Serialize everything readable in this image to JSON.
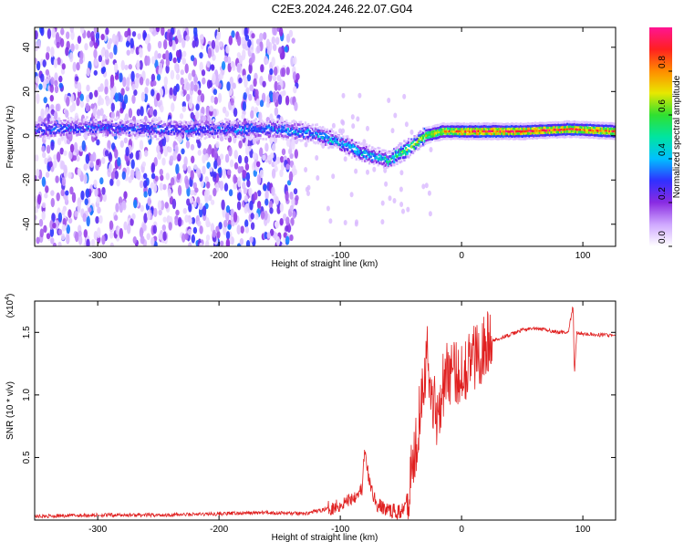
{
  "figure_title": "C2E3.2024.246.22.07.G04",
  "chart_data": [
    {
      "type": "heatmap",
      "title": "C2E3.2024.246.22.07.G04",
      "xlabel": "Height of straight line (km)",
      "ylabel": "Frequency (Hz)",
      "xlim": [
        -352,
        127
      ],
      "ylim": [
        -50,
        49
      ],
      "x_ticks": [
        -300,
        -200,
        -100,
        0,
        100
      ],
      "y_ticks": [
        -40,
        -20,
        0,
        20,
        40
      ],
      "colorbar": {
        "label": "Normalized spectral amplitude",
        "range": [
          0,
          1
        ],
        "ticks": [
          0.0,
          0.2,
          0.4,
          0.6,
          0.8
        ],
        "colors": [
          "#ffffff",
          "#cfa8ff",
          "#8a2be2",
          "#3030ff",
          "#00c0ff",
          "#00e5a0",
          "#30e030",
          "#e8e800",
          "#ff8c00",
          "#ff2020",
          "#ff1493"
        ]
      },
      "ridge": {
        "description_points": [
          [
            -352,
            3
          ],
          [
            -300,
            4
          ],
          [
            -250,
            3
          ],
          [
            -200,
            3
          ],
          [
            -150,
            3
          ],
          [
            -120,
            1
          ],
          [
            -100,
            -3
          ],
          [
            -80,
            -8
          ],
          [
            -60,
            -11
          ],
          [
            -45,
            -6
          ],
          [
            -30,
            0
          ],
          [
            -15,
            2
          ],
          [
            0,
            2
          ],
          [
            50,
            2
          ],
          [
            90,
            3
          ],
          [
            127,
            2
          ]
        ],
        "amplitude": [
          [
            -352,
            0.35
          ],
          [
            -300,
            0.35
          ],
          [
            -200,
            0.35
          ],
          [
            -150,
            0.4
          ],
          [
            -100,
            0.45
          ],
          [
            -60,
            0.5
          ],
          [
            -40,
            0.7
          ],
          [
            -10,
            0.85
          ],
          [
            0,
            0.95
          ],
          [
            60,
            0.95
          ],
          [
            127,
            0.9
          ]
        ]
      }
    },
    {
      "type": "line",
      "xlabel": "Height of straight line (km)",
      "ylabel": "SNR (10 * v/v)",
      "multiplier_label": "(x10",
      "multiplier_exp": "4",
      "multiplier_close": ")",
      "xlim": [
        -352,
        127
      ],
      "ylim": [
        0,
        1.75
      ],
      "x_ticks": [
        -300,
        -200,
        -100,
        0,
        100
      ],
      "y_ticks": [
        0.5,
        1.0,
        1.5
      ],
      "y_tick_labels": [
        "0.5",
        "1.0",
        "1.5"
      ],
      "color": "#e02020",
      "series": [
        {
          "x": [
            -352,
            -300,
            -250,
            -200,
            -160,
            -130,
            -115,
            -100,
            -90,
            -82,
            -80,
            -76,
            -70,
            -60,
            -50,
            -45,
            -40,
            -38,
            -35,
            -32,
            -28,
            -25,
            -20,
            -15,
            -10,
            -5,
            0,
            10,
            20,
            30,
            40,
            50,
            60,
            70,
            80,
            88,
            92,
            93,
            95,
            100,
            110,
            120,
            127
          ],
          "y": [
            0.03,
            0.04,
            0.04,
            0.05,
            0.06,
            0.05,
            0.08,
            0.12,
            0.18,
            0.25,
            0.55,
            0.3,
            0.12,
            0.08,
            0.06,
            0.2,
            0.45,
            0.6,
            0.85,
            1.15,
            1.3,
            1.0,
            0.85,
            1.1,
            1.2,
            1.15,
            1.2,
            1.3,
            1.4,
            1.45,
            1.48,
            1.52,
            1.53,
            1.52,
            1.5,
            1.5,
            1.72,
            1.15,
            1.5,
            1.49,
            1.48,
            1.48,
            1.47
          ]
        }
      ]
    }
  ]
}
